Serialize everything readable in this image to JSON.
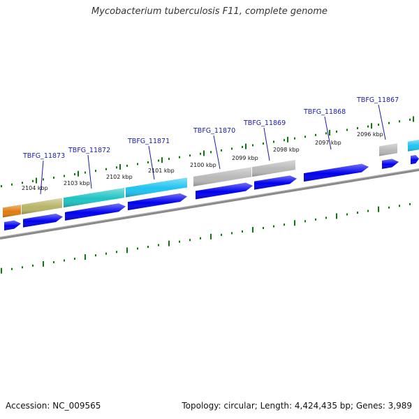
{
  "title": "Mycobacterium tuberculosis F11, complete genome",
  "footer": {
    "accession": "Accession: NC_009565",
    "summary": "Topology: circular; Length: 4,424,435 bp; Genes: 3,989"
  },
  "colors": {
    "forward_arrow": "#0000ee",
    "backbone": "#808080",
    "tick": "#0a7a0a",
    "label": "#1a1aa8"
  },
  "kbp_markers": [
    "2104 kbp",
    "2103 kbp",
    "2102 kbp",
    "2101 kbp",
    "2100 kbp",
    "2099 kbp",
    "2098 kbp",
    "2097 kbp",
    "2096 kbp"
  ],
  "gene_labels": [
    "TBFG_11873",
    "TBFG_11872",
    "TBFG_11871",
    "TBFG_11870",
    "TBFG_11869",
    "TBFG_11868",
    "TBFG_11867"
  ],
  "cog_colors": [
    "#e07c10",
    "#b8b468",
    "#1ec3c3",
    "#1ec3f0",
    "#b8b8b8",
    "#b8b8b8",
    "#b8b8b8",
    "#1ec3f0"
  ]
}
